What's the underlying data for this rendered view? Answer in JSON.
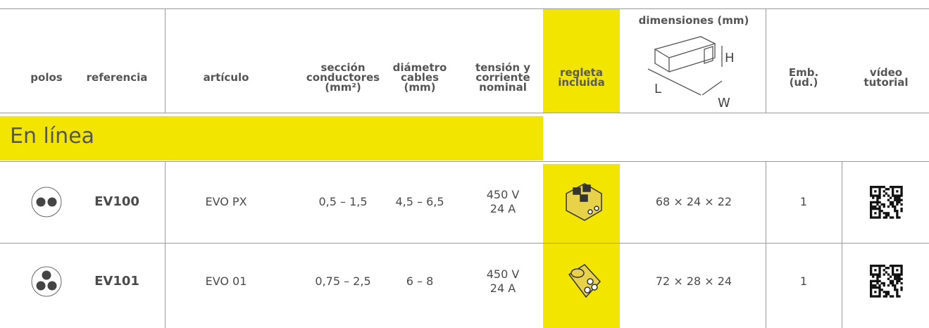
{
  "header": {
    "polos": "polos",
    "referencia": "referencia",
    "articulo": "artículo",
    "seccion": [
      "sección",
      "conductores",
      "(mm²)"
    ],
    "diametro": [
      "diámetro",
      "cables",
      "(mm)"
    ],
    "tension": [
      "tensión y",
      "corriente",
      "nominal"
    ],
    "regleta": [
      "regleta",
      "incluida"
    ],
    "dimensiones": "dimensiones (mm)",
    "dim_labels": {
      "L": "L",
      "H": "H",
      "W": "W"
    },
    "emb": [
      "Emb.",
      "(ud.)"
    ],
    "video": [
      "vídeo",
      "tutorial"
    ]
  },
  "section": "En línea",
  "rows": [
    {
      "referencia": "EV100",
      "articulo": "EVO PX",
      "seccion": "0,5 – 1,5",
      "diametro": "4,5 – 6,5",
      "tension": [
        "450 V",
        "24 A"
      ],
      "dimensiones": "68 × 24 × 22",
      "emb": "1"
    },
    {
      "referencia": "EV101",
      "articulo": "EVO 01",
      "seccion": "0,75 – 2,5",
      "diametro": "6 – 8",
      "tension": [
        "450 V",
        "24 A"
      ],
      "dimensiones": "72 × 28 × 24",
      "emb": "1"
    }
  ]
}
